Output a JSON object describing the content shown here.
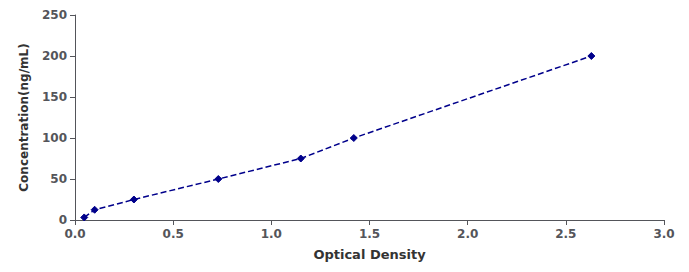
{
  "chart_data": {
    "type": "line",
    "x": [
      0.047,
      0.1,
      0.3,
      0.73,
      1.15,
      1.42,
      2.63
    ],
    "values": [
      3.125,
      12.5,
      25,
      50,
      75,
      100,
      200
    ],
    "color": "#00008B",
    "marker": "diamond",
    "line_style": "dashed",
    "xlabel": "Optical Density",
    "ylabel": "Concentration(ng/mL)",
    "xlim": [
      0,
      3
    ],
    "ylim": [
      0,
      250
    ],
    "xticks": [
      {
        "value": 0,
        "label": "0.0"
      },
      0.5,
      {
        "value": 1,
        "label": "1.0"
      },
      1.5,
      {
        "value": 2,
        "label": "2.0"
      },
      2.5,
      {
        "value": 3,
        "label": "3.0"
      }
    ],
    "yticks": [
      0,
      50,
      100,
      150,
      200,
      250
    ],
    "grid": false
  }
}
